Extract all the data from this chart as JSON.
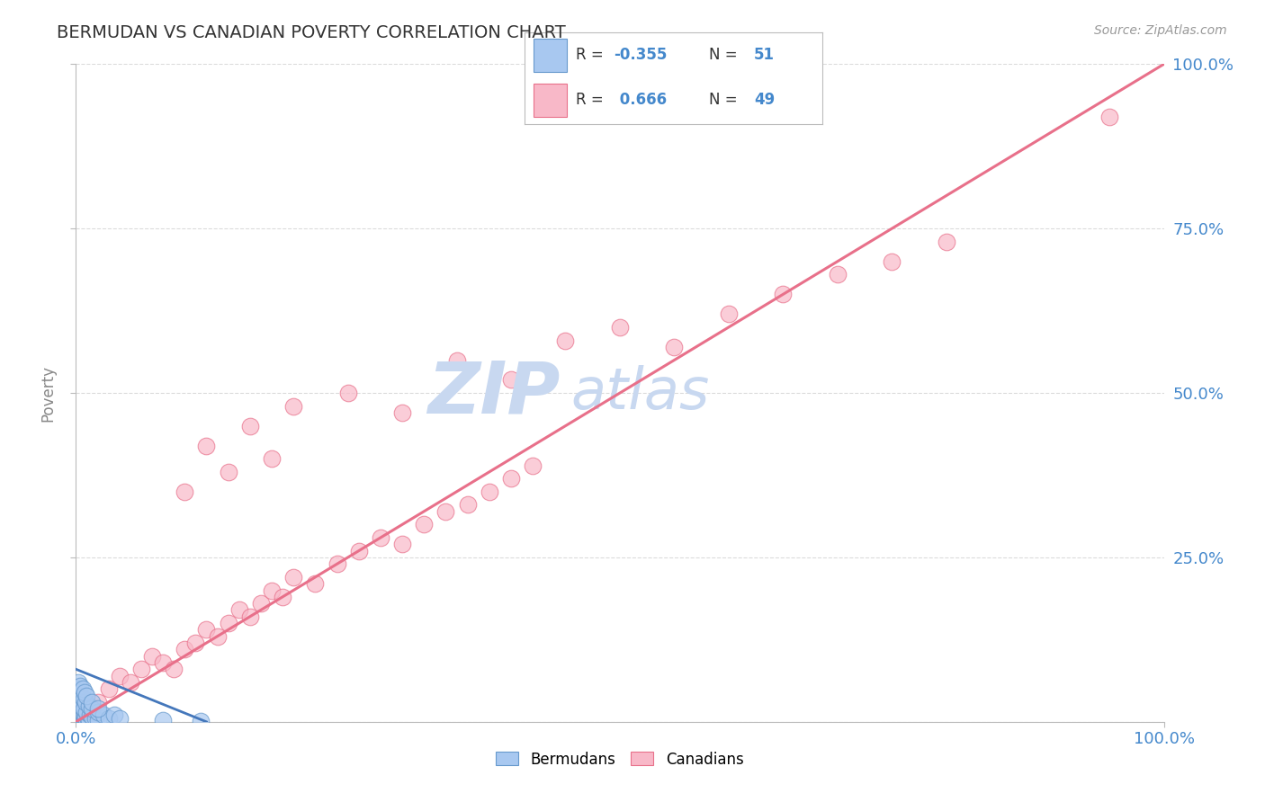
{
  "title": "BERMUDAN VS CANADIAN POVERTY CORRELATION CHART",
  "source_text": "Source: ZipAtlas.com",
  "ylabel": "Poverty",
  "blue_color": "#a8c8f0",
  "blue_edge": "#6699cc",
  "blue_line_color": "#4477bb",
  "pink_color": "#f8b8c8",
  "pink_edge": "#e8708a",
  "pink_line_color": "#e8708a",
  "background_color": "#ffffff",
  "grid_color": "#cccccc",
  "title_color": "#333333",
  "axis_label_color": "#4488cc",
  "watermark_zip_color": "#c8d8f0",
  "watermark_atlas_color": "#c8d8f0",
  "xlim": [
    0,
    100
  ],
  "ylim": [
    0,
    100
  ],
  "figsize": [
    14.06,
    8.92
  ],
  "dpi": 100,
  "legend_R_blue": "-0.355",
  "legend_N_blue": "51",
  "legend_R_pink": "0.666",
  "legend_N_pink": "49",
  "berm_x": [
    0.1,
    0.2,
    0.3,
    0.4,
    0.5,
    0.6,
    0.7,
    0.8,
    0.9,
    1.0,
    0.1,
    0.2,
    0.3,
    0.5,
    0.6,
    0.7,
    0.8,
    0.9,
    1.1,
    1.2,
    0.1,
    0.2,
    0.4,
    0.5,
    0.7,
    1.0,
    1.3,
    1.5,
    1.8,
    2.0,
    0.1,
    0.3,
    0.5,
    0.7,
    0.9,
    1.2,
    1.5,
    2.0,
    2.5,
    3.0,
    0.2,
    0.4,
    0.6,
    0.8,
    1.0,
    1.5,
    2.0,
    3.5,
    4.0,
    11.5,
    8.0
  ],
  "berm_y": [
    2.0,
    1.5,
    1.0,
    0.8,
    0.6,
    0.5,
    0.4,
    0.3,
    0.2,
    0.1,
    3.0,
    2.5,
    2.0,
    1.5,
    1.2,
    1.0,
    0.8,
    0.6,
    0.4,
    0.2,
    4.0,
    3.5,
    3.0,
    2.5,
    2.0,
    1.5,
    1.0,
    0.8,
    0.5,
    0.3,
    5.0,
    4.5,
    4.0,
    3.5,
    3.0,
    2.5,
    2.0,
    1.5,
    1.0,
    0.5,
    6.0,
    5.5,
    5.0,
    4.5,
    4.0,
    3.0,
    2.0,
    1.0,
    0.5,
    0.1,
    0.3
  ],
  "cana_x": [
    2,
    3,
    4,
    5,
    6,
    7,
    8,
    9,
    10,
    11,
    12,
    13,
    14,
    15,
    16,
    17,
    18,
    19,
    20,
    22,
    24,
    26,
    28,
    30,
    32,
    34,
    36,
    38,
    40,
    42,
    10,
    12,
    14,
    16,
    18,
    20,
    25,
    30,
    35,
    40,
    45,
    50,
    55,
    60,
    65,
    70,
    75,
    80,
    95
  ],
  "cana_y": [
    3,
    5,
    7,
    6,
    8,
    10,
    9,
    8,
    11,
    12,
    14,
    13,
    15,
    17,
    16,
    18,
    20,
    19,
    22,
    21,
    24,
    26,
    28,
    27,
    30,
    32,
    33,
    35,
    37,
    39,
    35,
    42,
    38,
    45,
    40,
    48,
    50,
    47,
    55,
    52,
    58,
    60,
    57,
    62,
    65,
    68,
    70,
    73,
    92
  ],
  "pink_line_x0": 0,
  "pink_line_y0": 0,
  "pink_line_x1": 100,
  "pink_line_y1": 100,
  "blue_line_x0": 0,
  "blue_line_y0": 8,
  "blue_line_x1": 12,
  "blue_line_y1": 0
}
